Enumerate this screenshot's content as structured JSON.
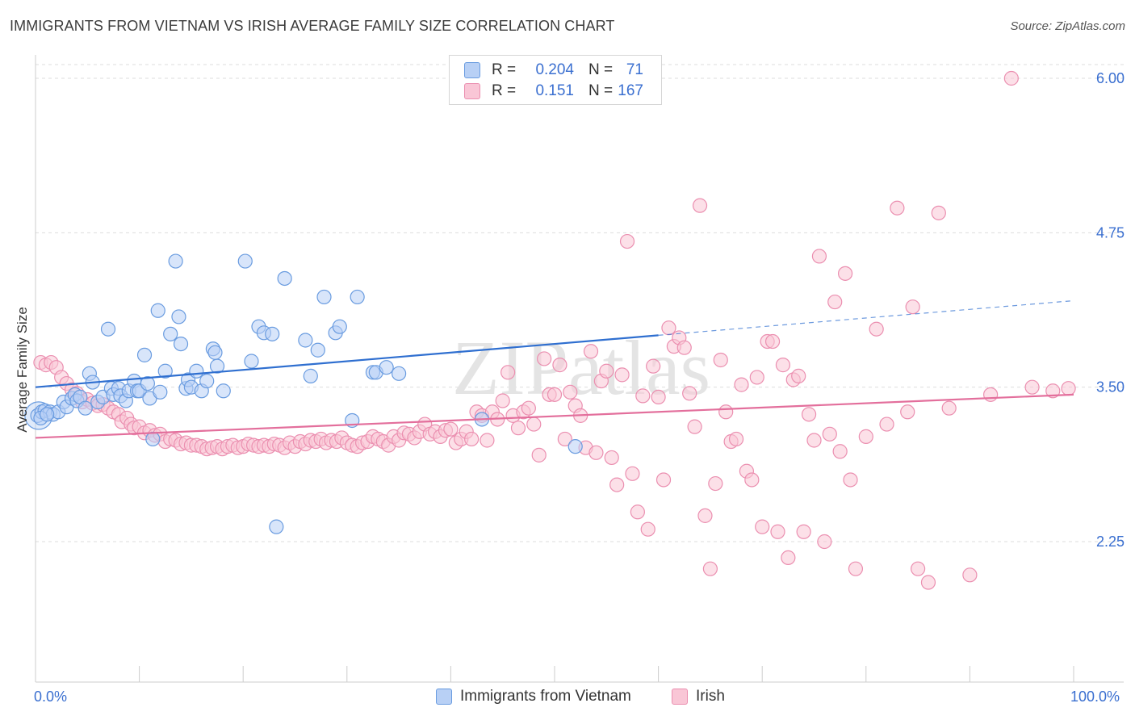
{
  "title": "IMMIGRANTS FROM VIETNAM VS IRISH AVERAGE FAMILY SIZE CORRELATION CHART",
  "source": "Source: ZipAtlas.com",
  "watermark": "ZIPatlas",
  "legend_top": {
    "rows": [
      {
        "r_label": "R =",
        "r_value": "0.204",
        "n_label": "N =",
        "n_value": "71"
      },
      {
        "r_label": "R =",
        "r_value": "0.151",
        "n_label": "N =",
        "n_value": "167"
      }
    ]
  },
  "chart_data": {
    "type": "scatter",
    "title": "IMMIGRANTS FROM VIETNAM VS IRISH AVERAGE FAMILY SIZE CORRELATION CHART",
    "xlabel": "",
    "ylabel": "Average Family Size",
    "xlim": [
      0,
      100
    ],
    "ylim": [
      1.25,
      6.2
    ],
    "x_tick_labels": [
      "0.0%",
      "100.0%"
    ],
    "y_ticks": [
      2.25,
      3.5,
      4.75,
      6.0
    ],
    "y_tick_labels": [
      "2.25",
      "3.50",
      "4.75",
      "6.00"
    ],
    "grid": true,
    "legend_placement": "bottom",
    "colors": {
      "vietnam_fill": "#b8d0f5",
      "vietnam_stroke": "#6a9ce0",
      "vietnam_line": "#2f6fd0",
      "irish_fill": "#f9c6d6",
      "irish_stroke": "#eb8fb0",
      "irish_line": "#e36f9c",
      "tick_label": "#3a6fd0",
      "grid": "#dddddd"
    },
    "series": [
      {
        "name": "Immigrants from Vietnam",
        "r": 0.204,
        "n": 71,
        "trend": {
          "x0": 0,
          "y0": 3.5,
          "x1": 60,
          "y1": 3.92,
          "dash_to_x": 100,
          "dash_to_y": 4.2
        },
        "points": [
          [
            0.2,
            3.27
          ],
          [
            0.6,
            3.3
          ],
          [
            0.9,
            3.31
          ],
          [
            1.4,
            3.3
          ],
          [
            1.7,
            3.28
          ],
          [
            2.2,
            3.3
          ],
          [
            2.7,
            3.38
          ],
          [
            3.0,
            3.34
          ],
          [
            3.5,
            3.41
          ],
          [
            3.8,
            3.44
          ],
          [
            4.0,
            3.39
          ],
          [
            4.3,
            3.42
          ],
          [
            4.8,
            3.33
          ],
          [
            5.2,
            3.61
          ],
          [
            5.5,
            3.54
          ],
          [
            6.0,
            3.38
          ],
          [
            6.5,
            3.42
          ],
          [
            7.0,
            3.97
          ],
          [
            7.3,
            3.49
          ],
          [
            7.5,
            3.44
          ],
          [
            8.0,
            3.49
          ],
          [
            8.2,
            3.43
          ],
          [
            8.7,
            3.39
          ],
          [
            9.0,
            3.47
          ],
          [
            9.5,
            3.55
          ],
          [
            9.8,
            3.47
          ],
          [
            10.0,
            3.47
          ],
          [
            10.5,
            3.76
          ],
          [
            10.8,
            3.53
          ],
          [
            11.0,
            3.41
          ],
          [
            11.3,
            3.08
          ],
          [
            11.8,
            4.12
          ],
          [
            12.0,
            3.46
          ],
          [
            12.5,
            3.63
          ],
          [
            13.0,
            3.93
          ],
          [
            13.5,
            4.52
          ],
          [
            13.8,
            4.07
          ],
          [
            14.0,
            3.85
          ],
          [
            14.5,
            3.49
          ],
          [
            14.7,
            3.56
          ],
          [
            15.0,
            3.5
          ],
          [
            15.5,
            3.63
          ],
          [
            16.0,
            3.47
          ],
          [
            16.5,
            3.55
          ],
          [
            17.1,
            3.81
          ],
          [
            17.3,
            3.78
          ],
          [
            17.5,
            3.67
          ],
          [
            18.1,
            3.47
          ],
          [
            20.2,
            4.52
          ],
          [
            20.8,
            3.71
          ],
          [
            21.5,
            3.99
          ],
          [
            22.0,
            3.94
          ],
          [
            22.8,
            3.93
          ],
          [
            23.2,
            2.37
          ],
          [
            24.0,
            4.38
          ],
          [
            26.0,
            3.88
          ],
          [
            26.5,
            3.59
          ],
          [
            27.2,
            3.8
          ],
          [
            27.8,
            4.23
          ],
          [
            28.9,
            3.94
          ],
          [
            29.3,
            3.99
          ],
          [
            31.0,
            4.23
          ],
          [
            30.5,
            3.23
          ],
          [
            32.5,
            3.62
          ],
          [
            32.8,
            3.62
          ],
          [
            33.8,
            3.66
          ],
          [
            35.0,
            3.61
          ],
          [
            43.0,
            3.24
          ],
          [
            52.0,
            3.02
          ],
          [
            0.5,
            3.25
          ],
          [
            1.1,
            3.28
          ]
        ]
      },
      {
        "name": "Irish",
        "r": 0.151,
        "n": 167,
        "trend": {
          "x0": 0,
          "y0": 3.09,
          "x1": 100,
          "y1": 3.44
        },
        "points": [
          [
            0.5,
            3.7
          ],
          [
            1.0,
            3.68
          ],
          [
            1.5,
            3.7
          ],
          [
            2.0,
            3.66
          ],
          [
            2.5,
            3.58
          ],
          [
            3.0,
            3.53
          ],
          [
            3.5,
            3.48
          ],
          [
            4.0,
            3.45
          ],
          [
            4.5,
            3.38
          ],
          [
            5.0,
            3.4
          ],
          [
            5.5,
            3.37
          ],
          [
            6.0,
            3.35
          ],
          [
            6.5,
            3.36
          ],
          [
            7.0,
            3.33
          ],
          [
            7.5,
            3.3
          ],
          [
            8.0,
            3.28
          ],
          [
            8.3,
            3.22
          ],
          [
            8.8,
            3.25
          ],
          [
            9.2,
            3.2
          ],
          [
            9.5,
            3.17
          ],
          [
            10.0,
            3.18
          ],
          [
            10.5,
            3.13
          ],
          [
            11.0,
            3.15
          ],
          [
            11.5,
            3.11
          ],
          [
            12.0,
            3.12
          ],
          [
            12.5,
            3.06
          ],
          [
            13.0,
            3.08
          ],
          [
            13.5,
            3.07
          ],
          [
            14.0,
            3.04
          ],
          [
            14.5,
            3.05
          ],
          [
            15.0,
            3.03
          ],
          [
            15.5,
            3.03
          ],
          [
            16.0,
            3.02
          ],
          [
            16.5,
            3.0
          ],
          [
            17.0,
            3.01
          ],
          [
            17.5,
            3.02
          ],
          [
            18.0,
            3.0
          ],
          [
            18.5,
            3.02
          ],
          [
            19.0,
            3.03
          ],
          [
            19.5,
            3.01
          ],
          [
            20.0,
            3.02
          ],
          [
            20.5,
            3.04
          ],
          [
            21.0,
            3.03
          ],
          [
            21.5,
            3.02
          ],
          [
            22.0,
            3.03
          ],
          [
            22.5,
            3.02
          ],
          [
            23.0,
            3.04
          ],
          [
            23.5,
            3.03
          ],
          [
            24.0,
            3.01
          ],
          [
            24.5,
            3.05
          ],
          [
            25.0,
            3.02
          ],
          [
            25.5,
            3.06
          ],
          [
            26.0,
            3.04
          ],
          [
            26.5,
            3.07
          ],
          [
            27.0,
            3.06
          ],
          [
            27.5,
            3.08
          ],
          [
            28.0,
            3.05
          ],
          [
            28.5,
            3.07
          ],
          [
            29.0,
            3.06
          ],
          [
            29.5,
            3.09
          ],
          [
            30.0,
            3.05
          ],
          [
            30.5,
            3.03
          ],
          [
            31.0,
            3.02
          ],
          [
            31.5,
            3.05
          ],
          [
            32.0,
            3.06
          ],
          [
            32.5,
            3.1
          ],
          [
            33.0,
            3.08
          ],
          [
            33.5,
            3.06
          ],
          [
            34.0,
            3.03
          ],
          [
            34.5,
            3.1
          ],
          [
            35.0,
            3.07
          ],
          [
            35.5,
            3.13
          ],
          [
            36.0,
            3.12
          ],
          [
            36.5,
            3.09
          ],
          [
            37.0,
            3.14
          ],
          [
            37.5,
            3.2
          ],
          [
            38.0,
            3.12
          ],
          [
            38.5,
            3.14
          ],
          [
            39.0,
            3.1
          ],
          [
            39.5,
            3.15
          ],
          [
            40.0,
            3.16
          ],
          [
            40.5,
            3.05
          ],
          [
            41.0,
            3.08
          ],
          [
            41.5,
            3.14
          ],
          [
            42.0,
            3.08
          ],
          [
            42.5,
            3.3
          ],
          [
            43.0,
            3.27
          ],
          [
            43.5,
            3.07
          ],
          [
            44.0,
            3.3
          ],
          [
            44.5,
            3.24
          ],
          [
            45.0,
            3.39
          ],
          [
            45.5,
            3.62
          ],
          [
            46.0,
            3.27
          ],
          [
            46.5,
            3.17
          ],
          [
            47.0,
            3.3
          ],
          [
            47.5,
            3.33
          ],
          [
            48.0,
            3.2
          ],
          [
            48.5,
            2.95
          ],
          [
            49.0,
            3.73
          ],
          [
            49.5,
            3.44
          ],
          [
            50.0,
            3.44
          ],
          [
            50.5,
            3.68
          ],
          [
            51.0,
            3.08
          ],
          [
            51.5,
            3.46
          ],
          [
            52.0,
            3.35
          ],
          [
            52.5,
            3.27
          ],
          [
            53.0,
            3.01
          ],
          [
            53.5,
            3.79
          ],
          [
            54.0,
            2.97
          ],
          [
            54.5,
            3.55
          ],
          [
            55.0,
            3.63
          ],
          [
            55.5,
            2.93
          ],
          [
            56.0,
            2.71
          ],
          [
            56.5,
            3.6
          ],
          [
            57.0,
            4.68
          ],
          [
            57.5,
            2.8
          ],
          [
            58.0,
            2.49
          ],
          [
            58.5,
            3.43
          ],
          [
            59.0,
            2.35
          ],
          [
            59.5,
            3.67
          ],
          [
            60.0,
            3.42
          ],
          [
            60.5,
            2.75
          ],
          [
            61.0,
            3.98
          ],
          [
            61.5,
            3.83
          ],
          [
            62.0,
            3.9
          ],
          [
            62.5,
            3.82
          ],
          [
            63.0,
            3.45
          ],
          [
            63.5,
            3.18
          ],
          [
            64.0,
            4.97
          ],
          [
            64.5,
            2.46
          ],
          [
            65.0,
            2.03
          ],
          [
            65.5,
            2.72
          ],
          [
            66.0,
            3.72
          ],
          [
            66.5,
            3.3
          ],
          [
            67.0,
            3.06
          ],
          [
            67.5,
            3.08
          ],
          [
            68.0,
            3.52
          ],
          [
            68.5,
            2.82
          ],
          [
            69.0,
            2.75
          ],
          [
            69.5,
            3.58
          ],
          [
            70.0,
            2.37
          ],
          [
            70.5,
            3.87
          ],
          [
            71.0,
            3.87
          ],
          [
            71.5,
            2.33
          ],
          [
            72.0,
            3.68
          ],
          [
            72.5,
            2.12
          ],
          [
            73.0,
            3.56
          ],
          [
            73.5,
            3.59
          ],
          [
            74.0,
            2.33
          ],
          [
            74.5,
            3.28
          ],
          [
            75.0,
            3.07
          ],
          [
            75.5,
            4.56
          ],
          [
            76.0,
            2.25
          ],
          [
            76.5,
            3.12
          ],
          [
            77.0,
            4.19
          ],
          [
            77.5,
            2.98
          ],
          [
            78.0,
            4.42
          ],
          [
            78.5,
            2.75
          ],
          [
            79.0,
            2.03
          ],
          [
            80.0,
            3.1
          ],
          [
            81.0,
            3.97
          ],
          [
            82.0,
            3.2
          ],
          [
            83.0,
            4.95
          ],
          [
            84.0,
            3.3
          ],
          [
            85.0,
            2.03
          ],
          [
            86.0,
            1.92
          ],
          [
            87.0,
            4.91
          ],
          [
            88.0,
            3.33
          ],
          [
            90.0,
            1.98
          ],
          [
            92.0,
            3.44
          ],
          [
            94.0,
            6.0
          ],
          [
            96.0,
            3.5
          ],
          [
            98.0,
            3.47
          ],
          [
            99.5,
            3.49
          ],
          [
            84.5,
            4.15
          ]
        ]
      }
    ]
  }
}
